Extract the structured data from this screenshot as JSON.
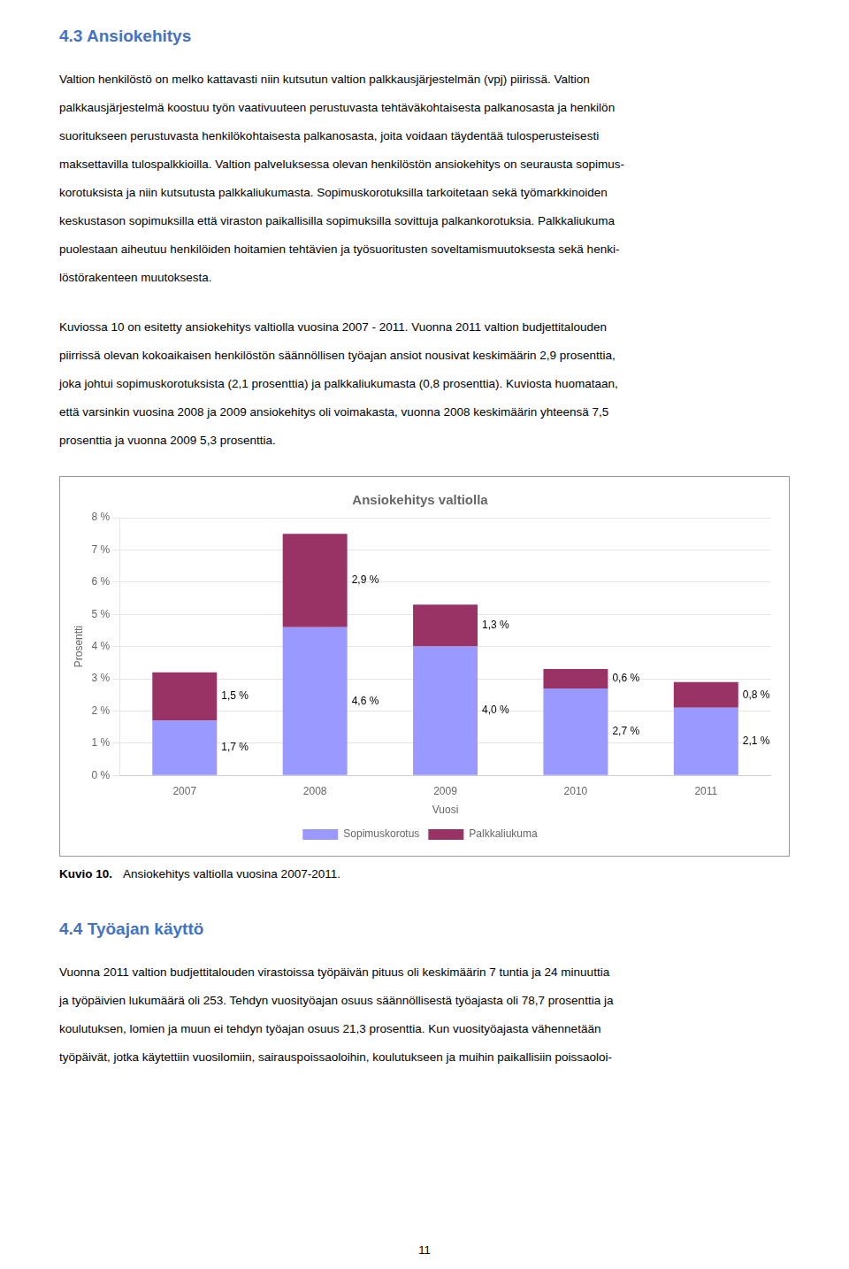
{
  "page": {
    "heading1": "4.3  Ansiokehitys",
    "heading1_color": "#4472C4",
    "para1": "Valtion henkilöstö on melko kattavasti niin kutsutun valtion palkkausjärjestelmän (vpj) piirissä. Valtion\npalkkausjärjestelmä koostuu työn vaativuuteen perustuvasta tehtäväkohtaisesta palkanosasta ja henkilön\nsuoritukseen perustuvasta henkilökohtaisesta palkanosasta, joita voidaan täydentää tulosperusteisesti\nmaksettavilla tulospalkkioilla. Valtion palveluksessa olevan henkilöstön ansiokehitys on seurausta sopimus-\nkorotuksista ja niin kutsutusta palkkaliukumasta. Sopimuskorotuksilla tarkoitetaan sekä työmarkkinoiden\nkeskustason sopimuksilla että viraston paikallisilla sopimuksilla sovittuja palkankorotuksia. Palkkaliukuma\npuolestaan aiheutuu henkilöiden hoitamien tehtävien ja työsuoritusten soveltamismuutoksesta sekä henki-\nlöstörakenteen muutoksesta.",
    "para2": "Kuviossa 10 on esitetty ansiokehitys valtiolla vuosina 2007 - 2011. Vuonna 2011 valtion budjettitalouden\npiirrissä olevan kokoaikaisen henkilöstön säännöllisen työajan ansiot nousivat keskimäärin 2,9 prosenttia,\njoka johtui sopimuskorotuksista (2,1 prosenttia) ja palkkaliukumasta (0,8 prosenttia). Kuviosta huomataan,\nettä varsinkin vuosina 2008 ja 2009 ansiokehitys oli voimakasta, vuonna 2008 keskimäärin yhteensä 7,5\nprosenttia ja vuonna 2009 5,3 prosenttia.",
    "caption_bold": "Kuvio 10.",
    "caption_text": "Ansiokehitys valtiolla vuosina 2007-2011.",
    "heading2": "4.4   Työajan käyttö",
    "heading2_color": "#4472C4",
    "para3": "Vuonna 2011 valtion budjettitalouden virastoissa työpäivän pituus oli keskimäärin 7 tuntia ja 24 minuuttia\nja työpäivien lukumäärä oli 253. Tehdyn vuosityöajan osuus säännöllisestä työajasta oli 78,7 prosenttia ja\nkoulutuksen, lomien ja muun ei tehdyn työajan osuus 21,3 prosenttia. Kun vuosityöajasta vähennetään\ntyöpäivät, jotka käytettiin vuosilomiin, sairauspoissaoloihin, koulutukseen ja muihin paikallisiin poissaoloi-",
    "page_number": "11"
  },
  "chart_data": {
    "type": "bar",
    "stacked": true,
    "title": "Ansiokehitys valtiolla",
    "x_label": "Vuosi",
    "y_label": "Prosentti",
    "categories": [
      "2007",
      "2008",
      "2009",
      "2010",
      "2011"
    ],
    "series": [
      {
        "name": "Sopimuskorotus",
        "color": "#9999FF",
        "values": [
          1.7,
          4.6,
          4.0,
          2.7,
          2.1
        ],
        "value_labels": [
          "1,7 %",
          "4,6 %",
          "4,0 %",
          "2,7 %",
          "2,1 %"
        ]
      },
      {
        "name": "Palkkaliukuma",
        "color": "#993366",
        "values": [
          1.5,
          2.9,
          1.3,
          0.6,
          0.8
        ],
        "value_labels": [
          "1,5 %",
          "2,9 %",
          "1,3 %",
          "0,6 %",
          "0,8 %"
        ]
      }
    ],
    "ylim": [
      0,
      8
    ],
    "yticks": [
      {
        "value": 0,
        "label": "0 %"
      },
      {
        "value": 1,
        "label": "1 %"
      },
      {
        "value": 2,
        "label": "2 %"
      },
      {
        "value": 3,
        "label": "3 %"
      },
      {
        "value": 4,
        "label": "4 %"
      },
      {
        "value": 5,
        "label": "5 %"
      },
      {
        "value": 6,
        "label": "6 %"
      },
      {
        "value": 7,
        "label": "7 %"
      },
      {
        "value": 8,
        "label": "8 %"
      }
    ],
    "grid": true,
    "legend": "bottom",
    "data_labels": true
  }
}
